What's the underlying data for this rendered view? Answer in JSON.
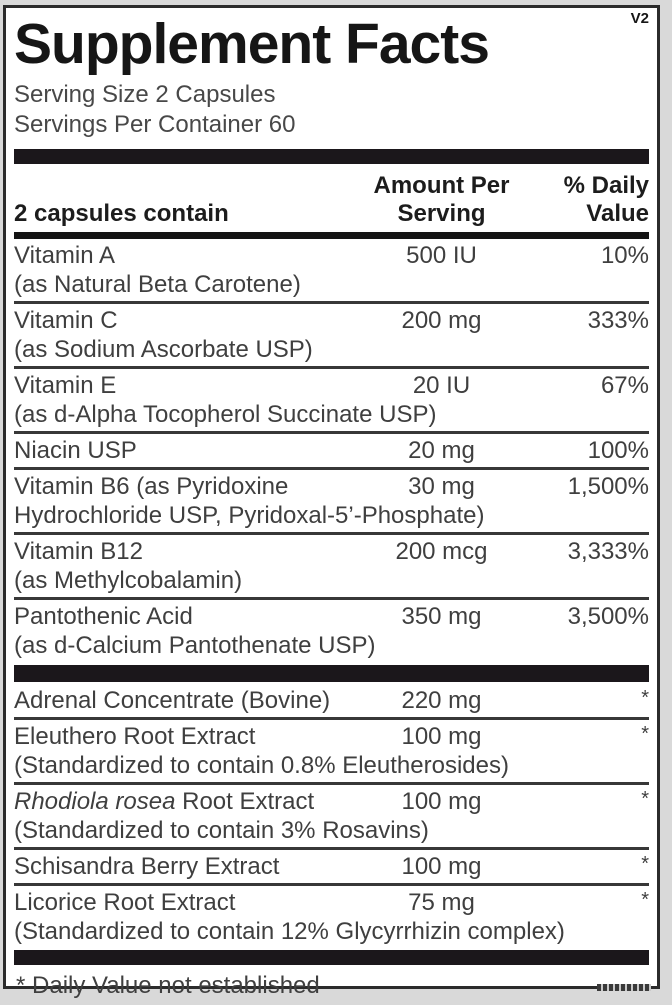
{
  "label": {
    "title": "Supplement Facts",
    "version": "V2",
    "serving_size": "Serving Size 2 Capsules",
    "servings_per_container": "Servings Per Container 60",
    "header": {
      "col1": "2 capsules contain",
      "col2": "Amount Per Serving",
      "col3": "% Daily Value"
    },
    "footnote": "* Daily Value not established",
    "colors": {
      "text": "#3f3f3f",
      "bar": "#1b171b",
      "border": "#2b2b2b",
      "background": "#ffffff",
      "page_background": "#d9d9d9"
    }
  },
  "rows": [
    {
      "name": "Vitamin A",
      "desc": "(as Natural Beta Carotene)",
      "amount": "500 IU",
      "dv": "10%"
    },
    {
      "name": "Vitamin C",
      "desc": "(as Sodium Ascorbate USP)",
      "amount": "200 mg",
      "dv": "333%"
    },
    {
      "name": "Vitamin E",
      "desc": "(as d-Alpha Tocopherol Succinate USP)",
      "amount": "20 IU",
      "dv": "67%"
    },
    {
      "name": "Niacin USP",
      "amount": "20 mg",
      "dv": "100%"
    },
    {
      "name": "Vitamin B6 (as Pyridoxine",
      "desc": "Hydrochloride USP, Pyridoxal-5’-Phosphate)",
      "amount": "30 mg",
      "dv": "1,500%"
    },
    {
      "name": "Vitamin B12",
      "desc": "(as Methylcobalamin)",
      "amount": "200 mcg",
      "dv": "3,333%"
    },
    {
      "name": "Pantothenic Acid",
      "desc": "(as d-Calcium Pantothenate USP)",
      "amount": "350 mg",
      "dv": "3,500%"
    },
    {
      "divider": true
    },
    {
      "name": "Adrenal Concentrate (Bovine)",
      "amount": "220 mg",
      "dv": "*"
    },
    {
      "name": "Eleuthero Root Extract",
      "desc": "(Standardized to contain 0.8% Eleutherosides)",
      "amount": "100 mg",
      "dv": "*"
    },
    {
      "name_italic": "Rhodiola rosea",
      "name": " Root Extract",
      "desc": "(Standardized to contain 3% Rosavins)",
      "amount": "100 mg",
      "dv": "*"
    },
    {
      "name": "Schisandra Berry Extract",
      "amount": "100 mg",
      "dv": "*"
    },
    {
      "name": "Licorice Root Extract",
      "desc": "(Standardized to contain 12% Glycyrrhizin complex)",
      "amount": "75 mg",
      "dv": "*"
    }
  ]
}
